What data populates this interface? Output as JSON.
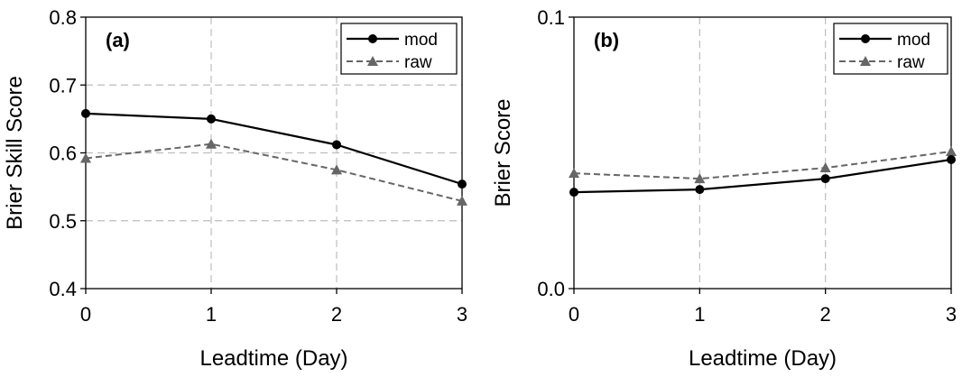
{
  "chart_data": [
    {
      "type": "line",
      "panel_label": "(a)",
      "xlabel": "Leadtime (Day)",
      "ylabel": "Brier Skill Score",
      "x": [
        0,
        1,
        2,
        3
      ],
      "xticks": [
        "0",
        "1",
        "2",
        "3"
      ],
      "ylim": [
        0.4,
        0.8
      ],
      "yticks": [
        "0.4",
        "0.5",
        "0.6",
        "0.7",
        "0.8"
      ],
      "grid": true,
      "legend_position": "top-right",
      "series": [
        {
          "name": "mod",
          "values": [
            0.658,
            0.65,
            0.612,
            0.554
          ],
          "color": "#000000",
          "dashed": false,
          "marker": "circle"
        },
        {
          "name": "raw",
          "values": [
            0.592,
            0.613,
            0.575,
            0.529
          ],
          "color": "#666666",
          "dashed": true,
          "marker": "triangle"
        }
      ]
    },
    {
      "type": "line",
      "panel_label": "(b)",
      "xlabel": "Leadtime (Day)",
      "ylabel": "Brier Score",
      "x": [
        0,
        1,
        2,
        3
      ],
      "xticks": [
        "0",
        "1",
        "2",
        "3"
      ],
      "ylim": [
        0.0,
        0.1
      ],
      "yticks": [
        "0.0",
        "0.1"
      ],
      "grid": true,
      "legend_position": "top-right",
      "series": [
        {
          "name": "mod",
          "values": [
            0.0355,
            0.0365,
            0.0405,
            0.0475
          ],
          "color": "#000000",
          "dashed": false,
          "marker": "circle"
        },
        {
          "name": "raw",
          "values": [
            0.0425,
            0.0405,
            0.0445,
            0.0505
          ],
          "color": "#666666",
          "dashed": true,
          "marker": "triangle"
        }
      ]
    }
  ]
}
